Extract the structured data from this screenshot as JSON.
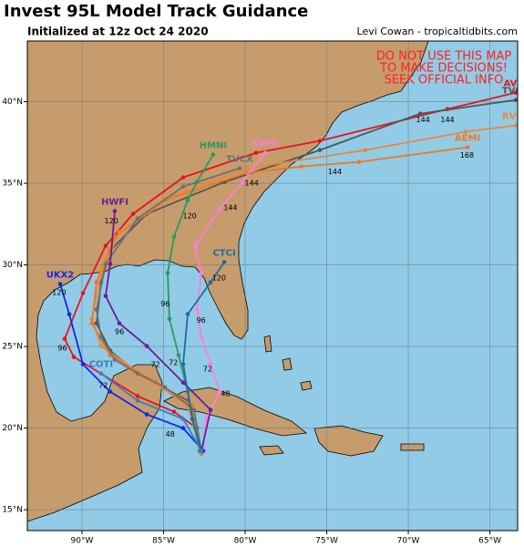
{
  "map": {
    "title": "Invest 95L Model Track Guidance",
    "subtitle": "Initialized at 12z Oct 24 2020",
    "credit": "Levi Cowan - tropicaltidbits.com",
    "warning": [
      "DO NOT USE THIS MAP",
      "TO MAKE DECISIONS!",
      "SEEK OFFICIAL INFO"
    ],
    "lonlim": [
      -93.35,
      -63.3
    ],
    "latlim": [
      13.72,
      43.72
    ],
    "lonticks": [
      {
        "value": -90,
        "label": "90°W"
      },
      {
        "value": -85,
        "label": "85°W"
      },
      {
        "value": -80,
        "label": "80°W"
      },
      {
        "value": -75,
        "label": "75°W"
      },
      {
        "value": -70,
        "label": "70°W"
      },
      {
        "value": -65,
        "label": "65°W"
      }
    ],
    "latticks": [
      {
        "value": 15,
        "label": "15°N"
      },
      {
        "value": 20,
        "label": "20°N"
      },
      {
        "value": 25,
        "label": "25°N"
      },
      {
        "value": 30,
        "label": "30°N"
      },
      {
        "value": 35,
        "label": "35°N"
      },
      {
        "value": 40,
        "label": "40°N"
      }
    ],
    "grid": true,
    "tracks": [
      {
        "name": "AVNI",
        "color": "#e8141c",
        "lon": [
          -82.68,
          -82.96,
          -84.36,
          -86.59,
          -90.5,
          -91.06,
          -89.94,
          -88.55,
          -86.87,
          -83.8,
          -79.33,
          -75.42,
          -67.6,
          -63.41
        ],
        "lat": [
          18.44,
          20.0,
          21.0,
          21.96,
          24.36,
          25.47,
          28.27,
          31.17,
          33.13,
          35.36,
          36.87,
          37.6,
          39.55,
          40.56
        ],
        "hour_labels": [
          {
            "lon": -67.6,
            "lat": 38.9,
            "text": 144
          }
        ]
      },
      {
        "name": "TVCN",
        "color": "#555555",
        "lon": [
          -82.68,
          -83.52,
          -86.59,
          -88.27,
          -89.11,
          -88.83,
          -88.27,
          -86.03,
          -81.28,
          -75.42,
          -69.27,
          -63.41
        ],
        "lat": [
          18.44,
          21.68,
          23.35,
          24.75,
          26.42,
          28.94,
          30.89,
          33.13,
          35.08,
          37.04,
          39.27,
          40.11
        ],
        "hour_labels": [
          {
            "lon": -69.1,
            "lat": 38.9,
            "text": 144
          }
        ]
      },
      {
        "name": "RVCC",
        "color": "#e8883a",
        "lon": [
          -82.68,
          -83.52,
          -86.03,
          -88.83,
          -89.39,
          -88.83,
          -87.71,
          -84.36,
          -79.89,
          -72.63,
          -66.48,
          -63.41
        ],
        "lat": [
          18.44,
          21.4,
          23.07,
          25.03,
          26.7,
          29.5,
          32.01,
          34.25,
          35.92,
          37.04,
          38.16,
          38.55
        ],
        "hour_labels": []
      },
      {
        "name": "AEMI",
        "color": "#f07820",
        "lon": [
          -82.68,
          -83.24,
          -85.47,
          -88.27,
          -89.39,
          -89.11,
          -87.99,
          -84.92,
          -79.89,
          -76.54,
          -73.02,
          -66.37
        ],
        "lat": [
          18.44,
          21.4,
          22.79,
          24.47,
          26.42,
          28.94,
          31.73,
          33.97,
          35.64,
          36.03,
          36.31,
          37.21
        ],
        "hour_labels": [
          {
            "lon": -66.4,
            "lat": 36.7,
            "text": 168
          },
          {
            "lon": -74.5,
            "lat": 35.7,
            "text": 144
          }
        ]
      },
      {
        "name": "CEMI",
        "color": "#ff7ce0",
        "lon": [
          -82.57,
          -82.4,
          -81.56,
          -82.12,
          -82.68,
          -82.96,
          -82.68,
          -83.07,
          -81.56,
          -80.17,
          -78.77
        ],
        "lat": [
          18.6,
          20.56,
          22.23,
          23.91,
          25.59,
          27.26,
          29.5,
          31.17,
          33.41,
          35.08,
          36.87
        ],
        "hour_labels": [
          {
            "lon": -80.9,
            "lat": 33.5,
            "text": 144
          },
          {
            "lon": -82.3,
            "lat": 23.6,
            "text": 72
          },
          {
            "lon": -81.2,
            "lat": 22.1,
            "text": 48
          }
        ]
      },
      {
        "name": "HMNI",
        "color": "#2a9a60",
        "lon": [
          -82.79,
          -83.07,
          -83.52,
          -84.08,
          -84.64,
          -84.75,
          -84.36,
          -83.52,
          -82.96,
          -81.96
        ],
        "lat": [
          18.6,
          20.0,
          22.23,
          24.47,
          26.7,
          29.5,
          31.73,
          33.97,
          35.08,
          36.76
        ],
        "hour_labels": [
          {
            "lon": -83.4,
            "lat": 33.0,
            "text": 120
          },
          {
            "lon": -84.9,
            "lat": 27.6,
            "text": 96
          },
          {
            "lon": -84.4,
            "lat": 24.0,
            "text": 72
          }
        ]
      },
      {
        "name": "TVCX",
        "color": "#707070",
        "lon": [
          -82.68,
          -83.13,
          -84.92,
          -86.59,
          -87.99,
          -88.83,
          -89.11,
          -88.55,
          -86.59,
          -83.8,
          -80.34
        ],
        "lat": [
          18.6,
          21.12,
          22.51,
          23.35,
          24.19,
          25.59,
          27.26,
          30.06,
          32.85,
          34.8,
          35.92
        ],
        "hour_labels": [
          {
            "lon": -79.6,
            "lat": 35.0,
            "text": 144
          }
        ]
      },
      {
        "name": "HWFI",
        "color": "#6b1d98",
        "lon": [
          -82.68,
          -82.12,
          -83.8,
          -86.03,
          -87.71,
          -88.55,
          -88.27,
          -87.99
        ],
        "lat": [
          18.6,
          21.12,
          22.79,
          25.03,
          26.42,
          28.1,
          30.06,
          33.3
        ],
        "hour_labels": [
          {
            "lon": -88.2,
            "lat": 32.7,
            "text": 120
          },
          {
            "lon": -87.7,
            "lat": 25.9,
            "text": 96
          },
          {
            "lon": -85.5,
            "lat": 23.9,
            "text": 72
          }
        ]
      },
      {
        "name": "CTCI",
        "color": "#1a6ea8",
        "lon": [
          -82.68,
          -83.24,
          -83.8,
          -83.52,
          -82.12,
          -81.28
        ],
        "lat": [
          18.6,
          20.56,
          23.91,
          26.98,
          28.94,
          30.17
        ],
        "hour_labels": [
          {
            "lon": -81.6,
            "lat": 29.2,
            "text": 120
          },
          {
            "lon": -82.7,
            "lat": 26.6,
            "text": 96
          }
        ]
      },
      {
        "name": "UKX2",
        "color": "#1428e6",
        "lon": [
          -82.57,
          -83.8,
          -86.03,
          -88.27,
          -89.94,
          -90.78,
          -91.34
        ],
        "lat": [
          18.6,
          20.0,
          20.84,
          22.23,
          23.91,
          26.98,
          28.83
        ],
        "hour_labels": [
          {
            "lon": -91.4,
            "lat": 28.3,
            "text": 120
          },
          {
            "lon": -91.2,
            "lat": 24.9,
            "text": 96
          },
          {
            "lon": -84.6,
            "lat": 19.6,
            "text": 48
          }
        ]
      },
      {
        "name": "COTI",
        "color": "#3a7fc0",
        "lon": [
          -82.68,
          -83.8,
          -86.59,
          -88.83
        ],
        "lat": [
          18.6,
          20.56,
          21.68,
          23.35
        ],
        "hour_labels": [
          {
            "lon": -88.7,
            "lat": 22.6,
            "text": 72
          }
        ]
      }
    ]
  }
}
